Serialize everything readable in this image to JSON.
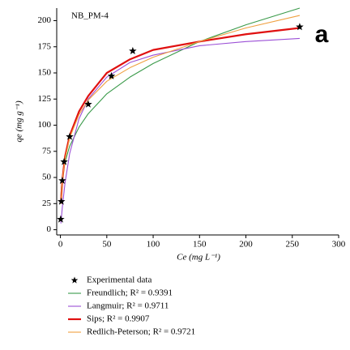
{
  "chart_data": {
    "type": "line",
    "annotation": "NB_PM-4",
    "panel_label": "a",
    "xlabel": "Ce (mg L⁻¹)",
    "ylabel": "qe (mg g⁻¹)",
    "xlim": [
      -4,
      300
    ],
    "ylim": [
      -5,
      212
    ],
    "xticks": [
      0,
      50,
      100,
      150,
      200,
      250,
      300
    ],
    "yticks": [
      0,
      25,
      50,
      75,
      100,
      125,
      150,
      175,
      200
    ],
    "series": [
      {
        "name": "Experimental data",
        "marker": "star",
        "color": "#000000",
        "x": [
          0.3,
          1,
          2,
          4,
          10,
          30,
          55,
          78,
          258
        ],
        "values": [
          10,
          27,
          47,
          65,
          89,
          120,
          147,
          171,
          194
        ]
      },
      {
        "name": "Freundlich; R² = 0.9391",
        "color": "#3a9a4a",
        "x": [
          0.5,
          1,
          2,
          5,
          10,
          20,
          30,
          50,
          75,
          100,
          150,
          200,
          258
        ],
        "values": [
          32,
          40,
          49,
          65,
          80,
          98,
          111,
          130,
          146,
          159,
          180,
          196,
          212
        ]
      },
      {
        "name": "Langmuir; R² = 0.9711",
        "color": "#9b4fd6",
        "x": [
          0.5,
          2,
          5,
          10,
          20,
          30,
          50,
          75,
          100,
          150,
          200,
          258
        ],
        "values": [
          6,
          21,
          45,
          73,
          106,
          125,
          146,
          160,
          167,
          176,
          180,
          183
        ]
      },
      {
        "name": "Sips; R² = 0.9907",
        "color": "#e01010",
        "x": [
          0.5,
          2,
          5,
          10,
          20,
          30,
          50,
          75,
          100,
          150,
          200,
          258
        ],
        "values": [
          25,
          47,
          70,
          90,
          113,
          128,
          150,
          163,
          172,
          180,
          187,
          193
        ]
      },
      {
        "name": "Redlich-Peterson; R² = 0.9721",
        "color": "#f0a040",
        "x": [
          0.5,
          2,
          5,
          10,
          20,
          30,
          50,
          75,
          100,
          150,
          200,
          258
        ],
        "values": [
          25,
          47,
          68,
          88,
          110,
          124,
          142,
          155,
          165,
          180,
          193,
          205
        ]
      }
    ]
  }
}
